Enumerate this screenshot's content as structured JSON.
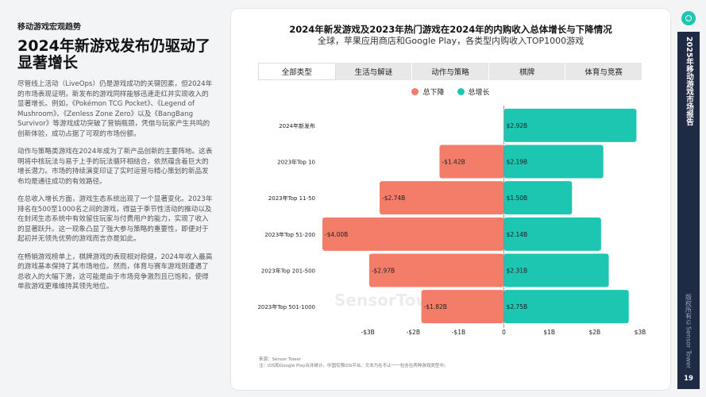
{
  "left": {
    "section": "移动游戏宏观趋势",
    "headline": "2024年新游戏发布仍驱动了显著增长",
    "paragraphs": [
      "尽管线上活动（LiveOps）仍是游戏成功的关键因素，但2024年的市场表现证明，新发布的游戏同样能够迅速走红并实现收入的显著增长。例如，《Pokémon TCG Pocket》、《Legend of Mushroom》、《Zenless Zone Zero》以及《BangBang Survivor》等游戏成功突破了营销瓶颈，凭借与玩家产生共鸣的创新体验，成功占据了可观的市场份额。",
      "动作与策略类游戏在2024年成为了新产品创新的主要阵地。这表明将中核玩法与易于上手的玩法循环相结合，依然蕴含着巨大的增长潜力。市场的持续演变印证了实时运营与精心策划的新品发布均是通往成功的有效路径。",
      "在总收入增长方面，游戏生态系统出现了一个显著变化。2023年排名在500至1000名之间的游戏，得益于季节性活动的推动以及在封闭生态系统中有效留住玩家与付费用户的能力，实现了收入的显著跃升。这一现象凸显了强大参与策略的重要性，即便对于起初并无领先优势的游戏而言亦是如此。",
      "在畅销游戏榜单上，棋牌游戏的表现相对稳健，2024年收入最高的游戏基本保持了其市场地位。然而，体育与赛车游戏则遭遇了总收入的大幅下滑，这可能是由于市场竞争激烈且已饱和，使得单款游戏更难维持其领先地位。"
    ]
  },
  "card": {
    "title": "2024年新发游戏及2023年热门游戏在2024年的内购收入总体增长与下降情况",
    "subtitle": "全球，苹果应用商店和Google Play，各类型内购收入TOP1000游戏",
    "tabs": [
      "全部类型",
      "生活与解谜",
      "动作与策略",
      "棋牌",
      "体育与竞赛"
    ],
    "watermark": "SensorTower",
    "source_line1": "来源：Sensor Tower",
    "source_line2": "注：iOS和Google Play合并统计。中国仅限iOS平台。文本为在不止一一包含在两种游戏类型中。"
  },
  "sidebar": {
    "title": "2025年移动游戏市场报告",
    "copyright": "版权所有©Sensor Tower",
    "page": "19"
  },
  "colors": {
    "decline": "#f47d6a",
    "growth": "#1cc6b0",
    "teal": "#1cc6b0",
    "navy": "#1f2a44"
  },
  "chart_data": {
    "type": "bar",
    "orientation": "horizontal",
    "categories": [
      "2024年新发布",
      "2023年Top 10",
      "2023年Top 11-50",
      "2023年Top 51-200",
      "2023年Top 201-500",
      "2023年Top 501-1000"
    ],
    "series": [
      {
        "name": "总下降",
        "values": [
          0,
          -1.42,
          -2.74,
          -4.0,
          -2.97,
          -1.82
        ],
        "labels": [
          "",
          "-$1.42B",
          "-$2.74B",
          "-$4.00B",
          "-$2.97B",
          "-$1.82B"
        ]
      },
      {
        "name": "总增长",
        "values": [
          2.92,
          2.19,
          1.5,
          2.14,
          2.31,
          2.75
        ],
        "labels": [
          "$2.92B",
          "$2.19B",
          "$1.50B",
          "$2.14B",
          "$2.31B",
          "$2.75B"
        ]
      }
    ],
    "xlim": [
      -4.0,
      3.0
    ],
    "xticks": [
      -3,
      -2,
      -1,
      0,
      1,
      2,
      3
    ],
    "xtick_labels": [
      "-$3B",
      "-$2B",
      "-$1B",
      "0",
      "$1B",
      "$2B",
      "$3B"
    ],
    "xlabel": "",
    "ylabel": "",
    "title": "",
    "grid": false,
    "legend": "top"
  }
}
